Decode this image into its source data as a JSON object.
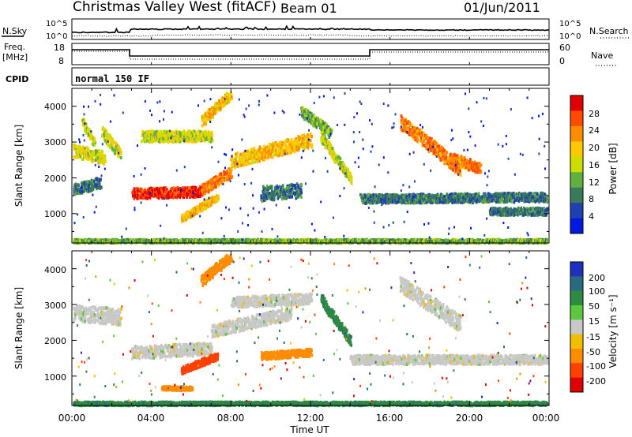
{
  "header": {
    "title": "Christmas Valley West (fitACF)",
    "beam": "Beam 01",
    "date": "01/Jun/2011"
  },
  "strips": {
    "nsky_label": "N.Sky",
    "nsky_ticks": [
      "10^5",
      "10^0"
    ],
    "nsearch_label": "N.Search",
    "nsearch_ticks": [
      "10^5",
      "10^0"
    ],
    "freq_label": "Freq.",
    "freq_unit": "[MHz]",
    "freq_ticks": [
      "18",
      "8"
    ],
    "nave_label": "Nave",
    "nave_ticks": [
      "60",
      "0"
    ],
    "cpid_label": "CPID",
    "cpid_value": "normal 150 IF"
  },
  "axes": {
    "x_ticks": [
      "00:00",
      "04:00",
      "08:00",
      "12:00",
      "16:00",
      "20:00",
      "00:00"
    ],
    "x_label": "Time UT",
    "y_ticks": [
      "4000",
      "3000",
      "2000",
      "1000"
    ],
    "y_label": "Slant Range [km]"
  },
  "colorbars": {
    "power": {
      "label": "Power [dB]",
      "ticks": [
        "28",
        "24",
        "20",
        "16",
        "12",
        "8",
        "4"
      ],
      "colors": [
        "#e00000",
        "#ff4a00",
        "#ff8c00",
        "#ffc800",
        "#ccdd00",
        "#60b040",
        "#3a7a5a",
        "#2040b0",
        "#0018e0"
      ]
    },
    "velocity": {
      "label": "Velocity [m s⁻¹]",
      "ticks": [
        "200",
        "100",
        "50",
        "15",
        "-15",
        "-50",
        "-100",
        "-200"
      ],
      "colors": [
        "#1e30c0",
        "#2a6a80",
        "#2e8a40",
        "#5cc840",
        "#c8c8c8",
        "#f0c000",
        "#ff8c00",
        "#ff4000",
        "#e00000"
      ]
    }
  },
  "chart_data": [
    {
      "type": "heatmap",
      "panel": "power",
      "xlabel": "Time UT",
      "ylabel": "Slant Range [km]",
      "xlim": [
        0,
        24
      ],
      "ylim": [
        180,
        4500
      ],
      "colorbar_label": "Power [dB]",
      "colorbar_ticks": [
        28,
        24,
        20,
        16,
        12,
        8,
        4
      ],
      "features": [
        {
          "t0": 0.5,
          "t1": 1.1,
          "r0": 3600,
          "r1": 3000,
          "w": 250,
          "level": 16
        },
        {
          "t0": 0.0,
          "t1": 1.6,
          "r0": 2800,
          "r1": 2600,
          "w": 350,
          "level": 16
        },
        {
          "t0": 1.5,
          "t1": 2.4,
          "r0": 3300,
          "r1": 2700,
          "w": 350,
          "level": 16
        },
        {
          "t0": 0.0,
          "t1": 1.4,
          "r0": 1700,
          "r1": 1900,
          "w": 300,
          "level": 8
        },
        {
          "t0": 3.0,
          "t1": 6.5,
          "r0": 1600,
          "r1": 1650,
          "w": 280,
          "level": 28
        },
        {
          "t0": 6.5,
          "t1": 8.0,
          "r0": 1700,
          "r1": 2200,
          "w": 300,
          "level": 24
        },
        {
          "t0": 3.5,
          "t1": 7.0,
          "r0": 3200,
          "r1": 3200,
          "w": 300,
          "level": 16
        },
        {
          "t0": 6.5,
          "t1": 8.0,
          "r0": 3600,
          "r1": 4400,
          "w": 300,
          "level": 20
        },
        {
          "t0": 8.0,
          "t1": 12.0,
          "r0": 2500,
          "r1": 3100,
          "w": 400,
          "level": 20
        },
        {
          "t0": 11.5,
          "t1": 13.0,
          "r0": 3900,
          "r1": 3300,
          "w": 300,
          "level": 12
        },
        {
          "t0": 12.5,
          "t1": 14.0,
          "r0": 3200,
          "r1": 2000,
          "w": 300,
          "level": 16
        },
        {
          "t0": 5.5,
          "t1": 7.3,
          "r0": 900,
          "r1": 1500,
          "w": 200,
          "level": 20
        },
        {
          "t0": 9.5,
          "t1": 11.5,
          "r0": 1600,
          "r1": 1700,
          "w": 400,
          "level": 8
        },
        {
          "t0": 14.5,
          "t1": 24.0,
          "r0": 1450,
          "r1": 1500,
          "w": 250,
          "level": 8
        },
        {
          "t0": 16.5,
          "t1": 19.5,
          "r0": 3600,
          "r1": 2300,
          "w": 400,
          "level": 24
        },
        {
          "t0": 19.0,
          "t1": 20.5,
          "r0": 2600,
          "r1": 2300,
          "w": 300,
          "level": 24
        },
        {
          "t0": 21.0,
          "t1": 24.0,
          "r0": 1100,
          "r1": 1100,
          "w": 200,
          "level": 8
        },
        {
          "t0": 0.0,
          "t1": 24.0,
          "r0": 260,
          "r1": 260,
          "w": 120,
          "level": 12
        }
      ]
    },
    {
      "type": "heatmap",
      "panel": "velocity",
      "xlabel": "Time UT",
      "ylabel": "Slant Range [km]",
      "xlim": [
        0,
        24
      ],
      "ylim": [
        180,
        4500
      ],
      "colorbar_label": "Velocity [m s⁻¹]",
      "colorbar_ticks": [
        200,
        100,
        50,
        15,
        -15,
        -50,
        -100,
        -200
      ],
      "features": [
        {
          "t0": 0.0,
          "t1": 2.4,
          "r0": 2800,
          "r1": 2700,
          "w": 450,
          "level": 0
        },
        {
          "t0": 3.0,
          "t1": 7.0,
          "r0": 1700,
          "r1": 1800,
          "w": 350,
          "level": 0
        },
        {
          "t0": 7.0,
          "t1": 11.0,
          "r0": 2300,
          "r1": 2800,
          "w": 350,
          "level": 0
        },
        {
          "t0": 8.0,
          "t1": 12.0,
          "r0": 3100,
          "r1": 3200,
          "w": 300,
          "level": 0
        },
        {
          "t0": 6.5,
          "t1": 8.0,
          "r0": 3700,
          "r1": 4400,
          "w": 300,
          "level": -60
        },
        {
          "t0": 5.5,
          "t1": 7.3,
          "r0": 1200,
          "r1": 1600,
          "w": 200,
          "level": -120
        },
        {
          "t0": 4.5,
          "t1": 6.0,
          "r0": 700,
          "r1": 700,
          "w": 100,
          "level": -60
        },
        {
          "t0": 9.5,
          "t1": 12.0,
          "r0": 1600,
          "r1": 1700,
          "w": 200,
          "level": -60
        },
        {
          "t0": 12.5,
          "t1": 14.0,
          "r0": 3200,
          "r1": 2000,
          "w": 300,
          "level": 60
        },
        {
          "t0": 14.0,
          "t1": 24.0,
          "r0": 1500,
          "r1": 1500,
          "w": 250,
          "level": 0
        },
        {
          "t0": 16.5,
          "t1": 19.5,
          "r0": 3600,
          "r1": 2500,
          "w": 450,
          "level": 0
        },
        {
          "t0": 0.0,
          "t1": 24.0,
          "r0": 260,
          "r1": 260,
          "w": 120,
          "level": 60
        }
      ]
    }
  ]
}
